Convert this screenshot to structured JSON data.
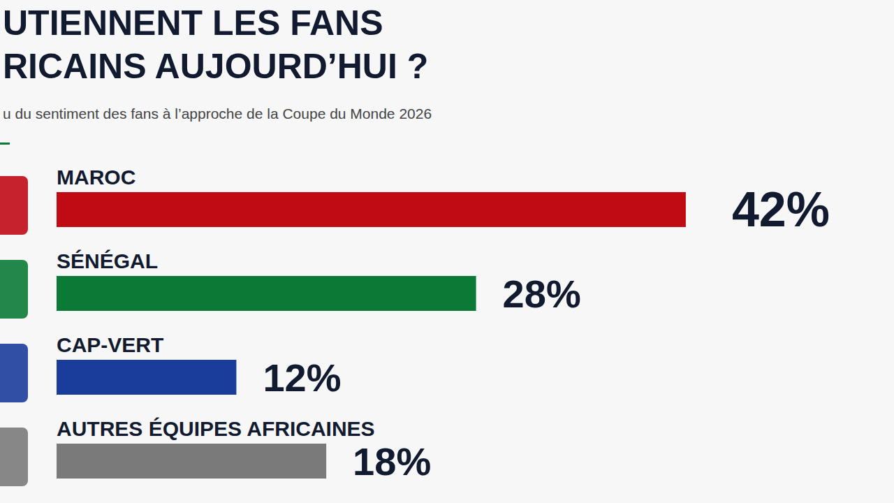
{
  "chart_data": {
    "type": "bar",
    "title": "UTIENNENT LES FANS\nRICAINS AUJOURD’HUI ?",
    "subtitle": "u du sentiment des fans à l’approche de la Coupe du Monde 2026",
    "orientation": "horizontal",
    "categories": [
      "MAROC",
      "SÉNÉGAL",
      "CAP-VERT",
      "AUTRES ÉQUIPES AFRICAINES"
    ],
    "values": [
      42,
      28,
      12,
      18
    ],
    "value_labels": [
      "42%",
      "28%",
      "12%",
      "18%"
    ],
    "colors": [
      "#c00a14",
      "#0b7a36",
      "#1a3d9c",
      "#7a7a7a"
    ],
    "xlim": [
      0,
      55
    ],
    "data_labels": true,
    "tick_labels": false,
    "grid": false
  }
}
